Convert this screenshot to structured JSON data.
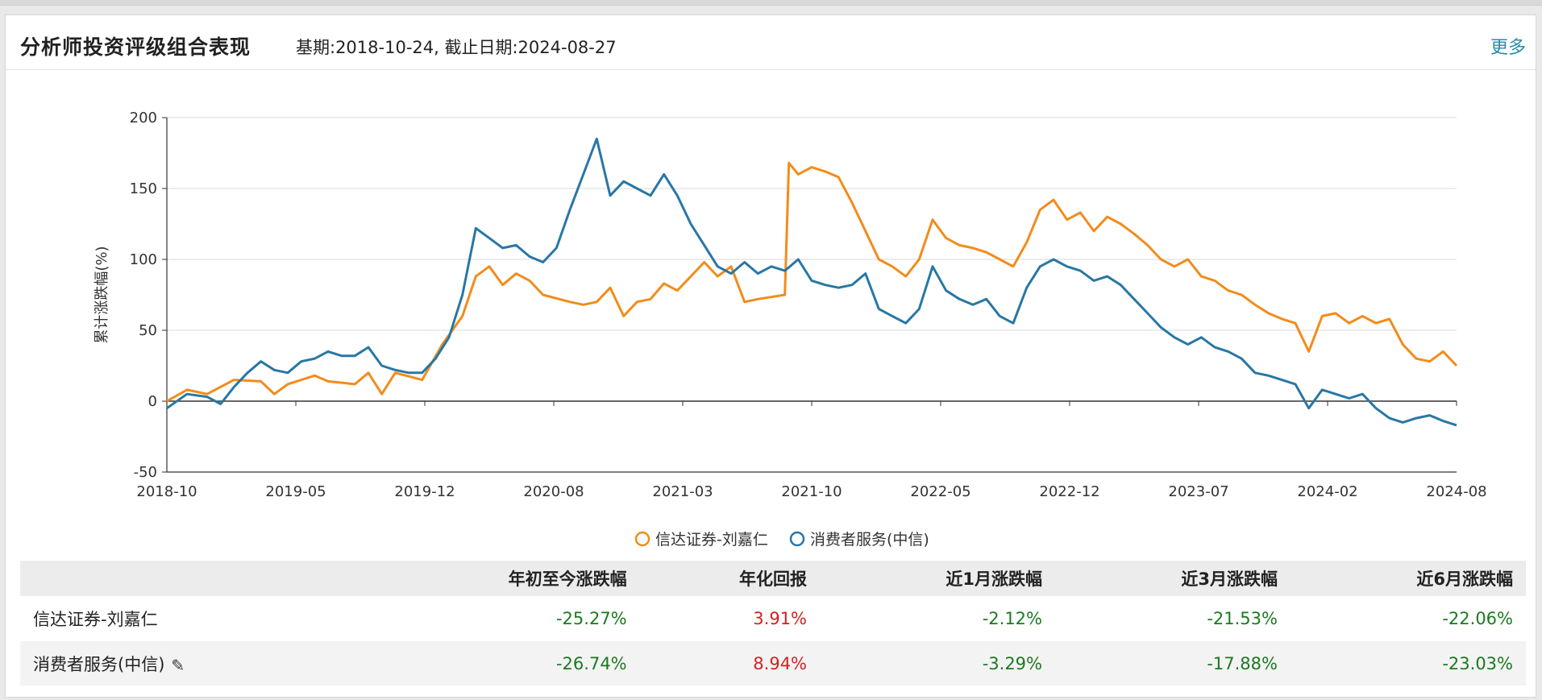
{
  "panel": {
    "title": "分析师投资评级组合表现",
    "subtitle": "基期:2018-10-24, 截止日期:2024-08-27",
    "more": "更多"
  },
  "chart_data": {
    "type": "line",
    "ylabel": "累计涨跌幅(%)",
    "ylim": [
      -50,
      200
    ],
    "yticks": [
      -50,
      0,
      50,
      100,
      150,
      200
    ],
    "xticks": [
      "2018-10",
      "2019-05",
      "2019-12",
      "2020-08",
      "2021-03",
      "2021-10",
      "2022-05",
      "2022-12",
      "2023-07",
      "2024-02",
      "2024-08"
    ],
    "grid": true,
    "legend_position": "bottom",
    "series": [
      {
        "name": "信达证券-刘嘉仁",
        "color": "#f28c1b",
        "points": [
          [
            0,
            0
          ],
          [
            1.5,
            8
          ],
          [
            3,
            5
          ],
          [
            5,
            15
          ],
          [
            7,
            14
          ],
          [
            8,
            5
          ],
          [
            9,
            12
          ],
          [
            11,
            18
          ],
          [
            12,
            14
          ],
          [
            14,
            12
          ],
          [
            15,
            20
          ],
          [
            16,
            5
          ],
          [
            17,
            20
          ],
          [
            19,
            15
          ],
          [
            20.5,
            40
          ],
          [
            22,
            60
          ],
          [
            23,
            88
          ],
          [
            24,
            95
          ],
          [
            25,
            82
          ],
          [
            26,
            90
          ],
          [
            27,
            85
          ],
          [
            28,
            75
          ],
          [
            30,
            70
          ],
          [
            31,
            68
          ],
          [
            32,
            70
          ],
          [
            33,
            80
          ],
          [
            34,
            60
          ],
          [
            35,
            70
          ],
          [
            36,
            72
          ],
          [
            37,
            83
          ],
          [
            38,
            78
          ],
          [
            40,
            98
          ],
          [
            41,
            88
          ],
          [
            42,
            95
          ],
          [
            43,
            70
          ],
          [
            44,
            72
          ],
          [
            46,
            75
          ],
          [
            46.3,
            168
          ],
          [
            47,
            160
          ],
          [
            48,
            165
          ],
          [
            49,
            162
          ],
          [
            50,
            158
          ],
          [
            51,
            140
          ],
          [
            52,
            120
          ],
          [
            53,
            100
          ],
          [
            54,
            95
          ],
          [
            55,
            88
          ],
          [
            56,
            100
          ],
          [
            57,
            128
          ],
          [
            58,
            115
          ],
          [
            59,
            110
          ],
          [
            60,
            108
          ],
          [
            61,
            105
          ],
          [
            62,
            100
          ],
          [
            63,
            95
          ],
          [
            64,
            112
          ],
          [
            65,
            135
          ],
          [
            66,
            142
          ],
          [
            67,
            128
          ],
          [
            68,
            133
          ],
          [
            69,
            120
          ],
          [
            70,
            130
          ],
          [
            71,
            125
          ],
          [
            72,
            118
          ],
          [
            73,
            110
          ],
          [
            74,
            100
          ],
          [
            75,
            95
          ],
          [
            76,
            100
          ],
          [
            77,
            88
          ],
          [
            78,
            85
          ],
          [
            79,
            78
          ],
          [
            80,
            75
          ],
          [
            81,
            68
          ],
          [
            82,
            62
          ],
          [
            83,
            58
          ],
          [
            84,
            55
          ],
          [
            85,
            35
          ],
          [
            86,
            60
          ],
          [
            87,
            62
          ],
          [
            88,
            55
          ],
          [
            89,
            60
          ],
          [
            90,
            55
          ],
          [
            91,
            58
          ],
          [
            92,
            40
          ],
          [
            93,
            30
          ],
          [
            94,
            28
          ],
          [
            95,
            35
          ],
          [
            96,
            25
          ]
        ]
      },
      {
        "name": "消费者服务(中信)",
        "color": "#2877a4",
        "points": [
          [
            0,
            -5
          ],
          [
            1.5,
            5
          ],
          [
            3,
            3
          ],
          [
            4,
            -2
          ],
          [
            5,
            10
          ],
          [
            6,
            20
          ],
          [
            7,
            28
          ],
          [
            8,
            22
          ],
          [
            9,
            20
          ],
          [
            10,
            28
          ],
          [
            11,
            30
          ],
          [
            12,
            35
          ],
          [
            13,
            32
          ],
          [
            14,
            32
          ],
          [
            15,
            38
          ],
          [
            16,
            25
          ],
          [
            17,
            22
          ],
          [
            18,
            20
          ],
          [
            19,
            20
          ],
          [
            20,
            30
          ],
          [
            21,
            45
          ],
          [
            22,
            75
          ],
          [
            23,
            122
          ],
          [
            24,
            115
          ],
          [
            25,
            108
          ],
          [
            26,
            110
          ],
          [
            27,
            102
          ],
          [
            28,
            98
          ],
          [
            29,
            108
          ],
          [
            30,
            135
          ],
          [
            31,
            160
          ],
          [
            32,
            185
          ],
          [
            33,
            145
          ],
          [
            34,
            155
          ],
          [
            35,
            150
          ],
          [
            36,
            145
          ],
          [
            37,
            160
          ],
          [
            38,
            145
          ],
          [
            39,
            125
          ],
          [
            40,
            110
          ],
          [
            41,
            95
          ],
          [
            42,
            90
          ],
          [
            43,
            98
          ],
          [
            44,
            90
          ],
          [
            45,
            95
          ],
          [
            46,
            92
          ],
          [
            47,
            100
          ],
          [
            48,
            85
          ],
          [
            49,
            82
          ],
          [
            50,
            80
          ],
          [
            51,
            82
          ],
          [
            52,
            90
          ],
          [
            53,
            65
          ],
          [
            54,
            60
          ],
          [
            55,
            55
          ],
          [
            56,
            65
          ],
          [
            57,
            95
          ],
          [
            58,
            78
          ],
          [
            59,
            72
          ],
          [
            60,
            68
          ],
          [
            61,
            72
          ],
          [
            62,
            60
          ],
          [
            63,
            55
          ],
          [
            64,
            80
          ],
          [
            65,
            95
          ],
          [
            66,
            100
          ],
          [
            67,
            95
          ],
          [
            68,
            92
          ],
          [
            69,
            85
          ],
          [
            70,
            88
          ],
          [
            71,
            82
          ],
          [
            72,
            72
          ],
          [
            73,
            62
          ],
          [
            74,
            52
          ],
          [
            75,
            45
          ],
          [
            76,
            40
          ],
          [
            77,
            45
          ],
          [
            78,
            38
          ],
          [
            79,
            35
          ],
          [
            80,
            30
          ],
          [
            81,
            20
          ],
          [
            82,
            18
          ],
          [
            83,
            15
          ],
          [
            84,
            12
          ],
          [
            85,
            -5
          ],
          [
            86,
            8
          ],
          [
            87,
            5
          ],
          [
            88,
            2
          ],
          [
            89,
            5
          ],
          [
            90,
            -5
          ],
          [
            91,
            -12
          ],
          [
            92,
            -15
          ],
          [
            93,
            -12
          ],
          [
            94,
            -10
          ],
          [
            95,
            -14
          ],
          [
            96,
            -17
          ]
        ]
      }
    ]
  },
  "table": {
    "headers": [
      "",
      "年初至今涨跌幅",
      "年化回报",
      "近1月涨跌幅",
      "近3月涨跌幅",
      "近6月涨跌幅"
    ],
    "rows": [
      {
        "name": "信达证券-刘嘉仁",
        "ytd": "-25.27%",
        "annual": "3.91%",
        "m1": "-2.12%",
        "m3": "-21.53%",
        "m6": "-22.06%"
      },
      {
        "name": "消费者服务(中信)",
        "ytd": "-26.74%",
        "annual": "8.94%",
        "m1": "-3.29%",
        "m3": "-17.88%",
        "m6": "-23.03%"
      }
    ]
  }
}
